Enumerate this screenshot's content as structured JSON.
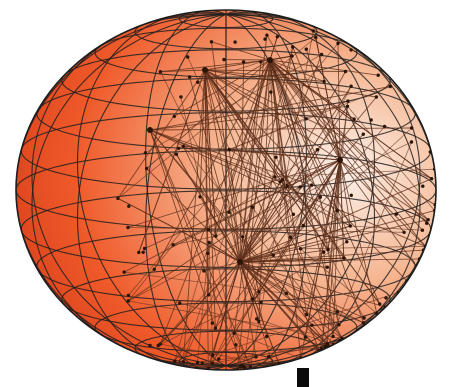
{
  "globe": {
    "shading": {
      "highlight": "#fbf0e8",
      "mid": "#f6b894",
      "edge": "#ef5a2a",
      "deep": "#d8401a"
    },
    "grid_color": "#1e1e1e",
    "link_color": "#5c2e1a",
    "node_color": "#2a1408",
    "stand_color": "#0a0a0a",
    "latitude_lines": 14,
    "longitude_lines": 16
  }
}
